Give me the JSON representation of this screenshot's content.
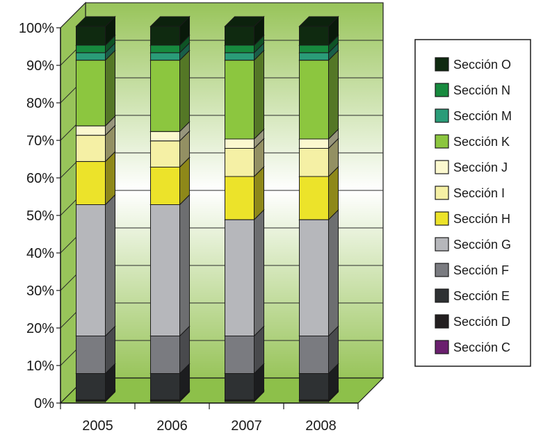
{
  "chart_data": {
    "type": "bar",
    "stacked": true,
    "three_d": true,
    "percent_axis": true,
    "categories": [
      "2005",
      "2006",
      "2007",
      "2008"
    ],
    "y_ticks": [
      "0%",
      "10%",
      "20%",
      "30%",
      "40%",
      "50%",
      "60%",
      "70%",
      "80%",
      "90%",
      "100%"
    ],
    "ylim": [
      0,
      100
    ],
    "legend_position": "right",
    "series": [
      {
        "name": "Sección C",
        "color": "#6a1f6e",
        "values": [
          0.2,
          0.2,
          0.2,
          0.2
        ]
      },
      {
        "name": "Sección D",
        "color": "#231f20",
        "values": [
          0.3,
          0.3,
          0.3,
          0.3
        ]
      },
      {
        "name": "Sección E",
        "color": "#2e3133",
        "values": [
          7,
          7,
          7,
          7
        ]
      },
      {
        "name": "Sección F",
        "color": "#7a7b80",
        "values": [
          10,
          10,
          10,
          10
        ]
      },
      {
        "name": "Sección G",
        "color": "#b6b7bb",
        "values": [
          35,
          35,
          31,
          31
        ]
      },
      {
        "name": "Sección H",
        "color": "#ece32a",
        "values": [
          11.5,
          10,
          11.5,
          11.5
        ]
      },
      {
        "name": "Sección I",
        "color": "#f5f0a5",
        "values": [
          7,
          7,
          7.5,
          7.5
        ]
      },
      {
        "name": "Sección J",
        "color": "#fbf8cf",
        "values": [
          2.5,
          2.5,
          2.5,
          2.5
        ]
      },
      {
        "name": "Sección K",
        "color": "#8cc63f",
        "values": [
          17.5,
          19,
          21,
          21
        ]
      },
      {
        "name": "Sección M",
        "color": "#2a9c78",
        "values": [
          2,
          2,
          2,
          2
        ]
      },
      {
        "name": "Sección N",
        "color": "#178a3e",
        "values": [
          2,
          2,
          2,
          2
        ]
      },
      {
        "name": "Sección O",
        "color": "#0f2a10",
        "values": [
          5,
          5,
          5,
          5
        ]
      }
    ],
    "background_colors": {
      "wall_edge": "#98c45a",
      "wall_center": "#ffffff",
      "floor": "#8dc04a"
    }
  }
}
